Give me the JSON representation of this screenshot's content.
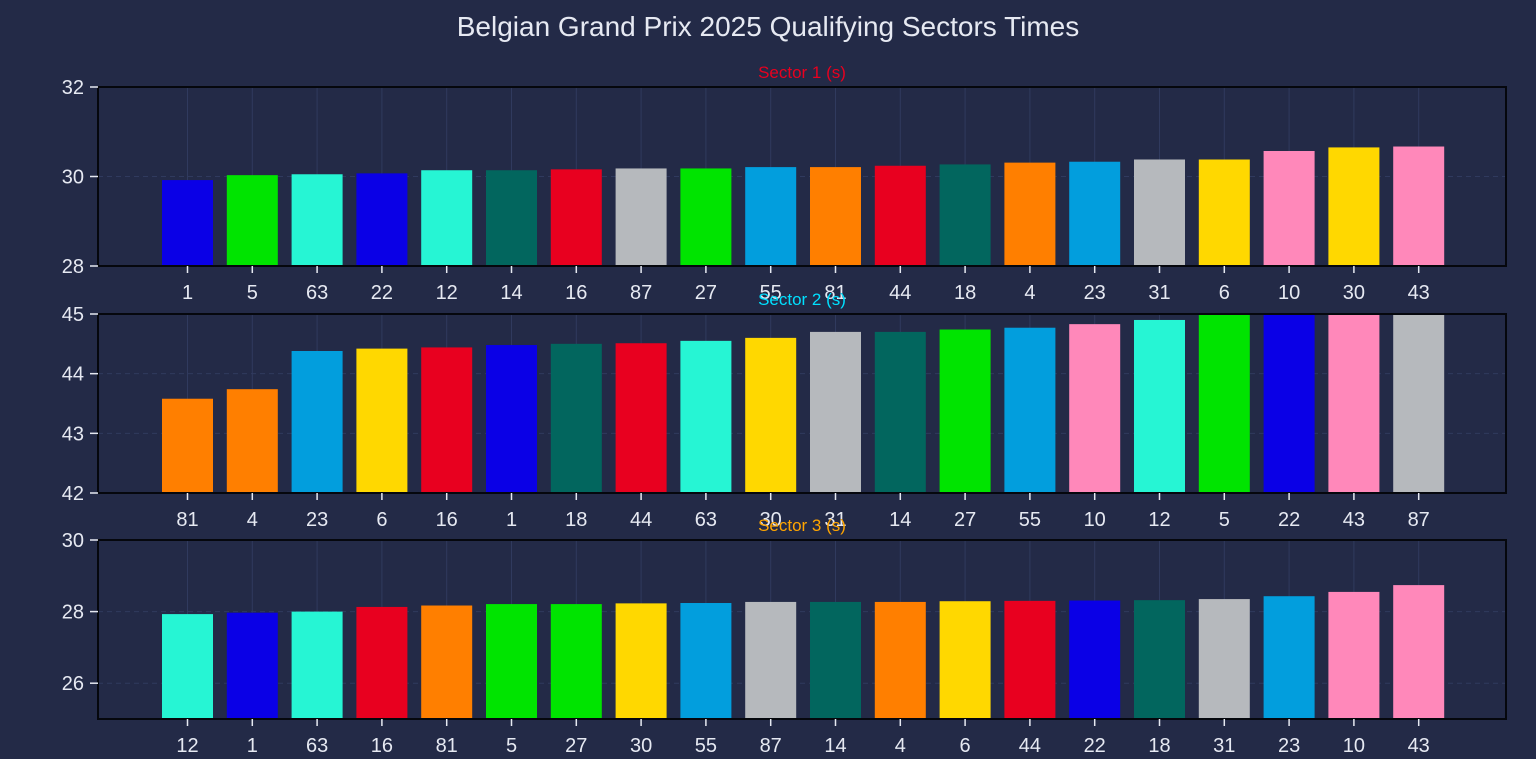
{
  "figure": {
    "title": "Belgian Grand Prix 2025 Qualifying Sectors Times",
    "background": "#232a47",
    "text_color": "#e6e9f2",
    "axis_color": "#05070d",
    "grid_color": "#303a5e"
  },
  "team_colors": {
    "mclaren": "#ff7f00",
    "ferrari": "#e8001f",
    "red_bull": "#0a00e6",
    "mercedes": "#26f5d4",
    "aston_martin": "#02665e",
    "alpine": "#ff88ba",
    "williams": "#029edd",
    "racing_bulls": "#b6b9bd",
    "haas": "#b6b9bd",
    "kick_sauber": "#00e400",
    "rb_yellow": "#ffd800"
  },
  "chart_data": [
    {
      "type": "bar",
      "title": "Sector 1 (s)",
      "title_color": "#e8001f",
      "categories": [
        "1",
        "5",
        "63",
        "22",
        "12",
        "14",
        "16",
        "87",
        "27",
        "55",
        "81",
        "44",
        "18",
        "4",
        "23",
        "31",
        "6",
        "10",
        "30",
        "43"
      ],
      "values": [
        29.92,
        30.03,
        30.05,
        30.07,
        30.14,
        30.14,
        30.16,
        30.18,
        30.18,
        30.21,
        30.21,
        30.24,
        30.27,
        30.31,
        30.33,
        30.38,
        30.38,
        30.57,
        30.65,
        30.67
      ],
      "colors": [
        "#0a00e6",
        "#00e400",
        "#26f5d4",
        "#0a00e6",
        "#26f5d4",
        "#02665e",
        "#e8001f",
        "#b6b9bd",
        "#00e400",
        "#029edd",
        "#ff7f00",
        "#e8001f",
        "#02665e",
        "#ff7f00",
        "#029edd",
        "#b6b9bd",
        "#ffd800",
        "#ff88ba",
        "#ffd800",
        "#ff88ba"
      ],
      "ylim": [
        28,
        32
      ],
      "yticks": [
        28,
        30,
        32
      ],
      "grid": true
    },
    {
      "type": "bar",
      "title": "Sector 2 (s)",
      "title_color": "#00e0ff",
      "categories": [
        "81",
        "4",
        "23",
        "6",
        "16",
        "1",
        "18",
        "44",
        "63",
        "30",
        "31",
        "14",
        "27",
        "55",
        "10",
        "12",
        "5",
        "22",
        "43",
        "87"
      ],
      "values": [
        43.58,
        43.74,
        44.38,
        44.42,
        44.44,
        44.48,
        44.5,
        44.51,
        44.55,
        44.6,
        44.7,
        44.7,
        44.74,
        44.77,
        44.83,
        44.9,
        45.1,
        45.1,
        45.1,
        45.1
      ],
      "colors": [
        "#ff7f00",
        "#ff7f00",
        "#029edd",
        "#ffd800",
        "#e8001f",
        "#0a00e6",
        "#02665e",
        "#e8001f",
        "#26f5d4",
        "#ffd800",
        "#b6b9bd",
        "#02665e",
        "#00e400",
        "#029edd",
        "#ff88ba",
        "#26f5d4",
        "#00e400",
        "#0a00e6",
        "#ff88ba",
        "#b6b9bd"
      ],
      "ylim": [
        42,
        45
      ],
      "yticks": [
        42,
        43,
        44,
        45
      ],
      "grid": true
    },
    {
      "type": "bar",
      "title": "Sector 3 (s)",
      "title_color": "#ffa500",
      "categories": [
        "12",
        "1",
        "63",
        "16",
        "81",
        "5",
        "27",
        "30",
        "55",
        "87",
        "14",
        "4",
        "6",
        "44",
        "22",
        "18",
        "31",
        "23",
        "10",
        "43"
      ],
      "values": [
        27.93,
        27.97,
        28.0,
        28.13,
        28.17,
        28.21,
        28.21,
        28.23,
        28.24,
        28.27,
        28.27,
        28.27,
        28.29,
        28.3,
        28.31,
        28.32,
        28.35,
        28.43,
        28.55,
        28.74
      ],
      "colors": [
        "#26f5d4",
        "#0a00e6",
        "#26f5d4",
        "#e8001f",
        "#ff7f00",
        "#00e400",
        "#00e400",
        "#ffd800",
        "#029edd",
        "#b6b9bd",
        "#02665e",
        "#ff7f00",
        "#ffd800",
        "#e8001f",
        "#0a00e6",
        "#02665e",
        "#b6b9bd",
        "#029edd",
        "#ff88ba",
        "#ff88ba"
      ],
      "ylim": [
        25,
        30
      ],
      "yticks": [
        26,
        28,
        30
      ],
      "grid": true
    }
  ]
}
